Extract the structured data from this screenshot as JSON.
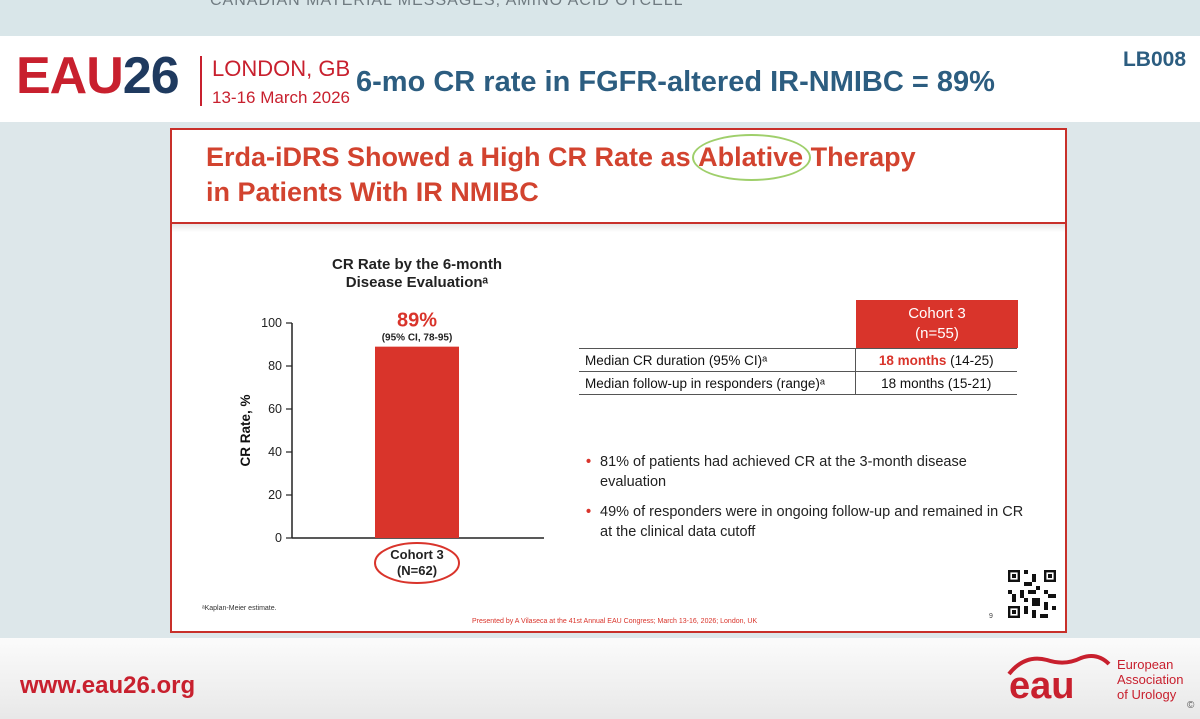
{
  "top_strip": {
    "text": "CANADIAN MATERIAL MESSAGES, AMINO ACID OTCELL"
  },
  "header": {
    "logo": {
      "eau": "EAU",
      "year": "26",
      "city": "LONDON, GB",
      "dates": "13-16 March 2026"
    },
    "headline": "6-mo CR rate in FGFR-altered IR-NMIBC = 89%",
    "code": "LB008"
  },
  "slide": {
    "title_pre": "Erda-iDRS Showed a High CR Rate as ",
    "title_highlight": "Ablative",
    "title_post": " Therapy",
    "title_line2": "in Patients With IR NMIBC",
    "table": {
      "header_line1": "Cohort 3",
      "header_line2": "(n=55)",
      "rows": [
        {
          "label": "Median CR duration (95% CI)ᵃ",
          "value_highlight": "18 months",
          "value_rest": " (14-25)"
        },
        {
          "label": "Median follow-up in responders (range)ᵃ",
          "value": "18 months (15-21)"
        }
      ]
    },
    "bullets": [
      "81% of patients had achieved CR at the 3-month disease evaluation",
      "49% of responders were in ongoing follow-up and remained in CR at the clinical data cutoff"
    ],
    "bullet_marker": "•",
    "footnote": "ᵃKaplan-Meier estimate.",
    "presented_by": "Presented by A Vilaseca at the 41st Annual EAU Congress; March 13-16, 2026; London, UK",
    "page_number": "9"
  },
  "chart_data": {
    "type": "bar",
    "title_line1": "CR Rate by the 6-month",
    "title_line2": "Disease Evaluationᵃ",
    "ylabel": "CR Rate, %",
    "ylim": [
      0,
      100
    ],
    "yticks": [
      0,
      20,
      40,
      60,
      80,
      100
    ],
    "categories": [
      "Cohort 3"
    ],
    "category_sublabels": [
      "(N=62)"
    ],
    "values": [
      89
    ],
    "value_labels": [
      "89%"
    ],
    "value_sublabels": [
      "(95% CI, 78-95)"
    ],
    "bar_color": "#d9342b"
  },
  "footer": {
    "url": "www.eau26.org",
    "logo_text": "eau",
    "org_line1": "European",
    "org_line2": "Association",
    "org_line3": "of Urology",
    "copyright": "©"
  }
}
